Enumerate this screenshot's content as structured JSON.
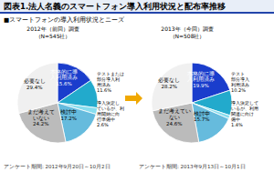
{
  "title": "図表1.法人名義のスマートフォン導入利用状況と配布率推移",
  "subtitle": "■スマートフォンの導入利用状況とニーズ",
  "chart_data": [
    {
      "type": "pie",
      "title": "2012年（前回）調査\n（N=545社）",
      "categories": [
        "本格的に導\n入利用済み",
        "テストまたは\n部分導入利\n用済み",
        "導入決定し\nているが、利\n用開始に向\n行準備中",
        "検討中",
        "まだ考えて\nいない",
        "必要なし"
      ],
      "values": [
        15.6,
        11.6,
        2.6,
        17.2,
        24.2,
        29.4
      ],
      "value_labels": [
        "15.6%",
        "11.6%",
        "2.6%",
        "17.2%",
        "24.2%",
        "29.4%"
      ],
      "colors": [
        "#1a3dcc",
        "#22aacc",
        "#88ddee",
        "#66bbdd",
        "#bbbbbb",
        "#f0f0f0"
      ],
      "data_labels": true,
      "annotations": [
        "アンケート期間: 2012年9月20日～10月2日"
      ]
    },
    {
      "type": "pie",
      "title": "2013年（今回）調査\n（N=508社）",
      "categories": [
        "本格的に導\n入利用済み",
        "テスト\n部分導入\n利用済み",
        "導入決定して\nいるが、利用\n関連に向け\n備中",
        "検討中",
        "まだ考えてい\nない",
        "必要なし"
      ],
      "values": [
        19.9,
        10.2,
        1.4,
        15.7,
        24.6,
        28.2
      ],
      "value_labels": [
        "19.9%",
        "10.2%",
        "1.4%",
        "15.7%",
        "24.6%",
        "28.2%"
      ],
      "colors": [
        "#1a3dcc",
        "#22aacc",
        "#88ddee",
        "#66bbdd",
        "#bbbbbb",
        "#f0f0f0"
      ],
      "data_labels": true,
      "annotations": [
        "アンケート期間: 2013年9月13日～10月1日"
      ]
    }
  ]
}
